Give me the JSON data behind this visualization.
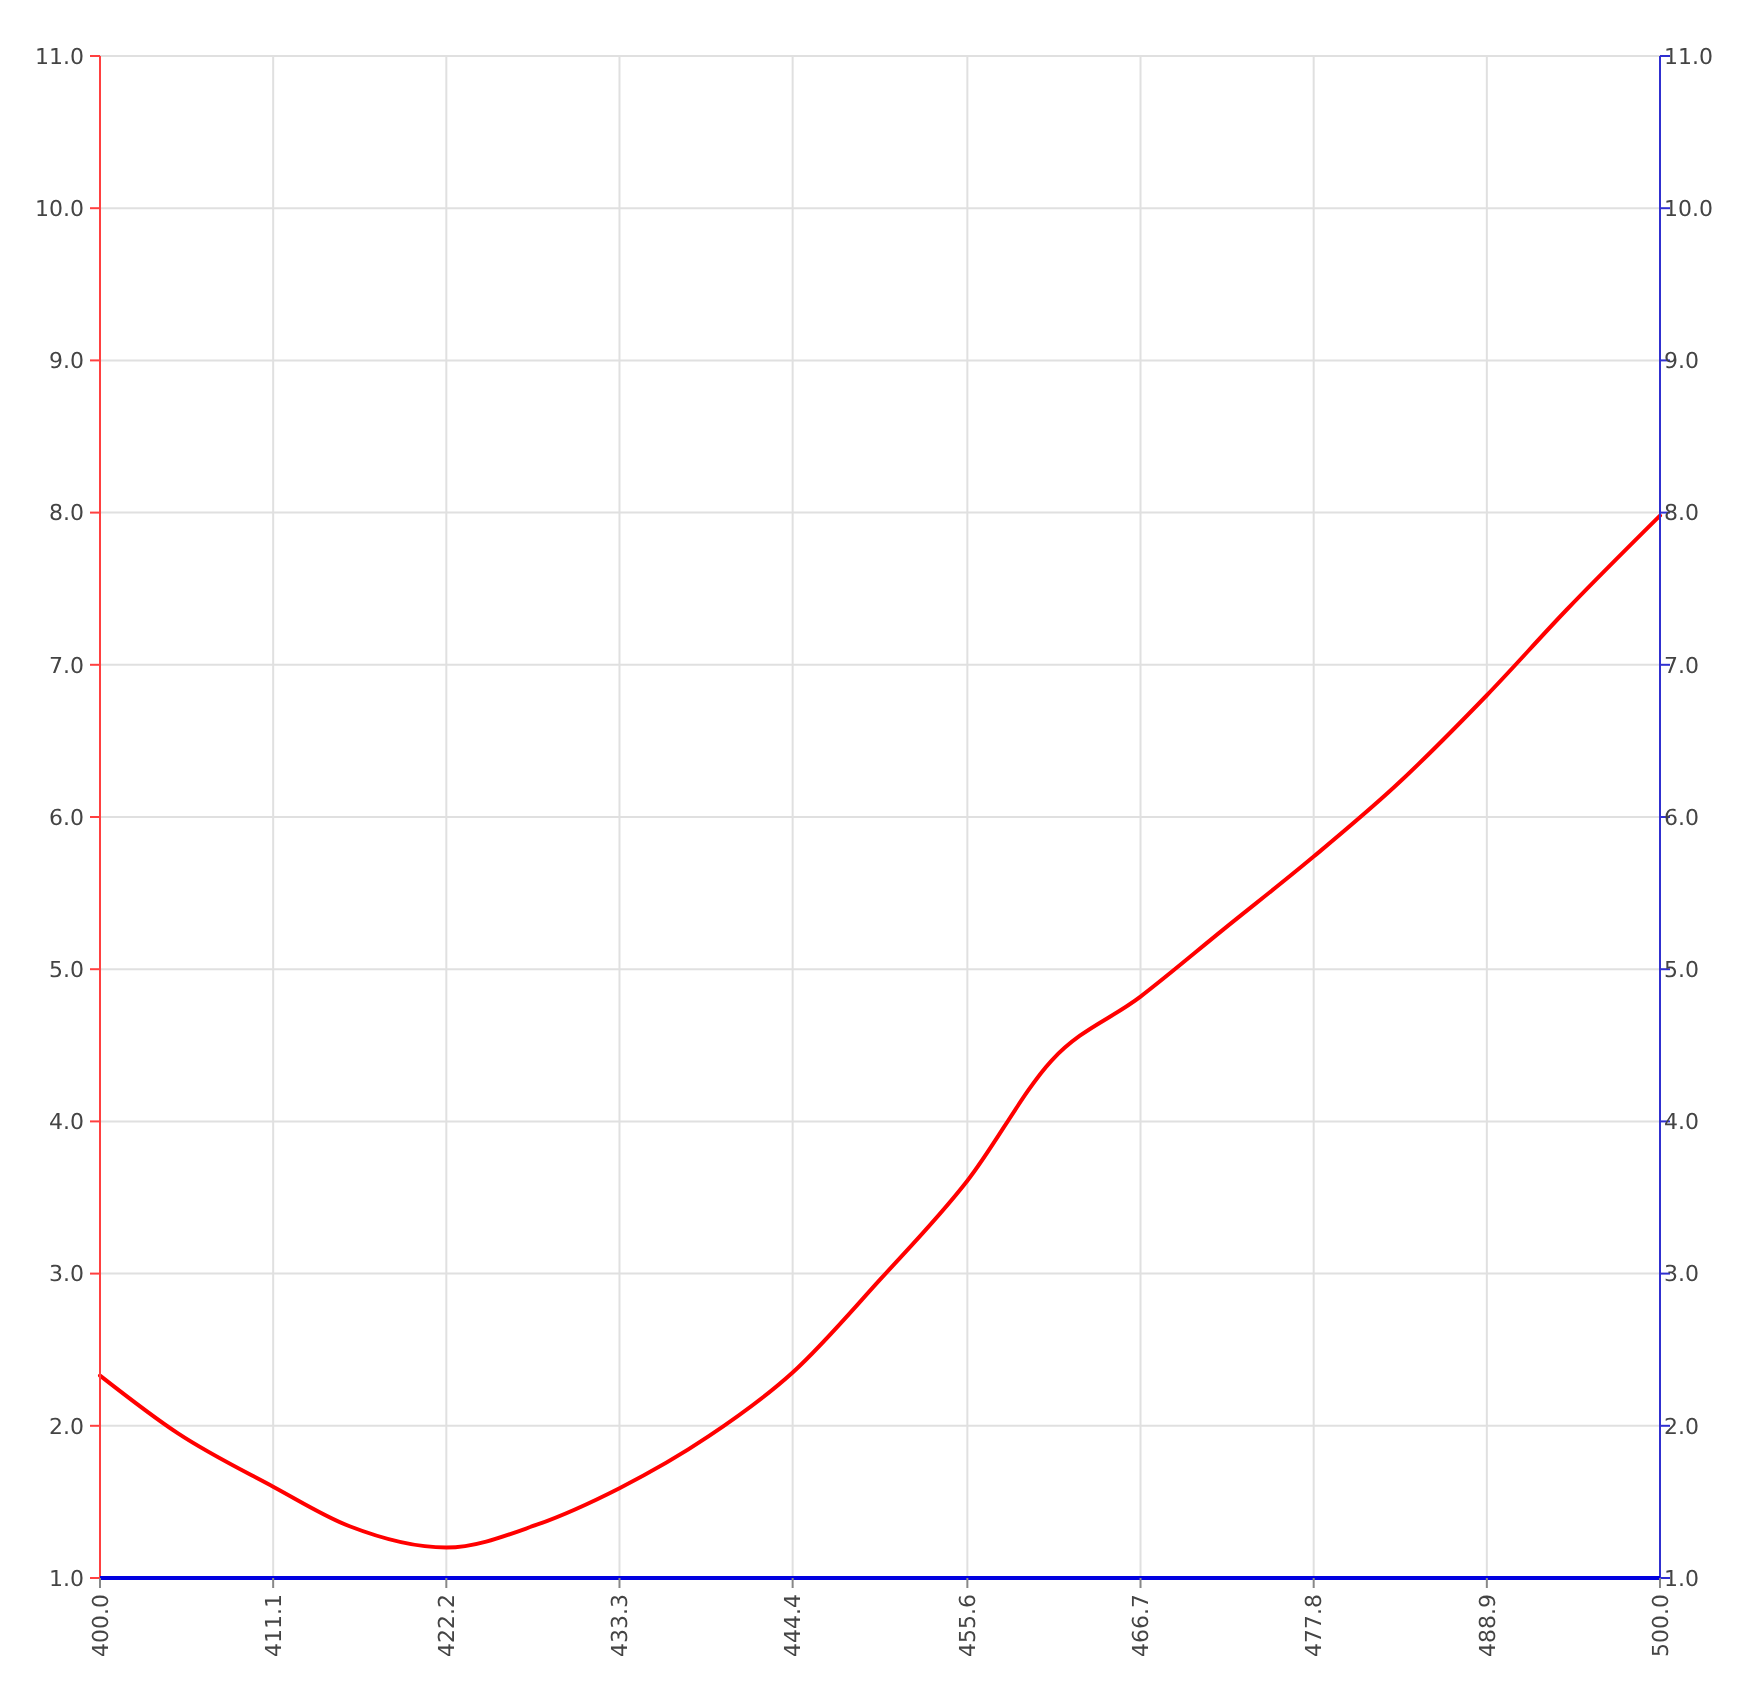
{
  "chart_data": {
    "type": "line",
    "x": [
      400,
      405,
      411.1,
      416,
      422.2,
      428,
      433.3,
      439,
      444.4,
      450,
      455.6,
      461,
      466.7,
      472,
      477.8,
      483,
      488.9,
      494,
      500
    ],
    "series": [
      {
        "color": "#ff0000",
        "values": [
          2.33,
          1.95,
          1.6,
          1.34,
          1.2,
          1.35,
          1.59,
          1.93,
          2.35,
          2.96,
          3.61,
          4.4,
          4.82,
          5.26,
          5.74,
          6.2,
          6.8,
          7.36,
          7.98
        ]
      }
    ],
    "xlim": [
      400,
      500
    ],
    "xticks": [
      {
        "value": 400,
        "label": "400.0"
      },
      {
        "value": 411.1,
        "label": "411.1"
      },
      {
        "value": 422.2,
        "label": "422.2"
      },
      {
        "value": 433.3,
        "label": "433.3"
      },
      {
        "value": 444.4,
        "label": "444.4"
      },
      {
        "value": 455.6,
        "label": "455.6"
      },
      {
        "value": 466.7,
        "label": "466.7"
      },
      {
        "value": 477.8,
        "label": "477.8"
      },
      {
        "value": 488.9,
        "label": "488.9"
      },
      {
        "value": 500,
        "label": "500.0"
      }
    ],
    "ylim": [
      1,
      11
    ],
    "yticks": [
      {
        "value": 1,
        "label": "1.0"
      },
      {
        "value": 2,
        "label": "2.0"
      },
      {
        "value": 3,
        "label": "3.0"
      },
      {
        "value": 4,
        "label": "4.0"
      },
      {
        "value": 5,
        "label": "5.0"
      },
      {
        "value": 6,
        "label": "6.0"
      },
      {
        "value": 7,
        "label": "7.0"
      },
      {
        "value": 8,
        "label": "8.0"
      },
      {
        "value": 9,
        "label": "9.0"
      },
      {
        "value": 10,
        "label": "10.0"
      },
      {
        "value": 11,
        "label": "11.0"
      }
    ],
    "y2lim": [
      1,
      11
    ],
    "y2ticks": [
      {
        "value": 1,
        "label": "1.0"
      },
      {
        "value": 2,
        "label": "2.0"
      },
      {
        "value": 3,
        "label": "3.0"
      },
      {
        "value": 4,
        "label": "4.0"
      },
      {
        "value": 5,
        "label": "5.0"
      },
      {
        "value": 6,
        "label": "6.0"
      },
      {
        "value": 7,
        "label": "7.0"
      },
      {
        "value": 8,
        "label": "8.0"
      },
      {
        "value": 9,
        "label": "9.0"
      },
      {
        "value": 10,
        "label": "10.0"
      },
      {
        "value": 11,
        "label": "11.0"
      }
    ],
    "grid": true,
    "marker": "none",
    "line_style": "solid"
  }
}
